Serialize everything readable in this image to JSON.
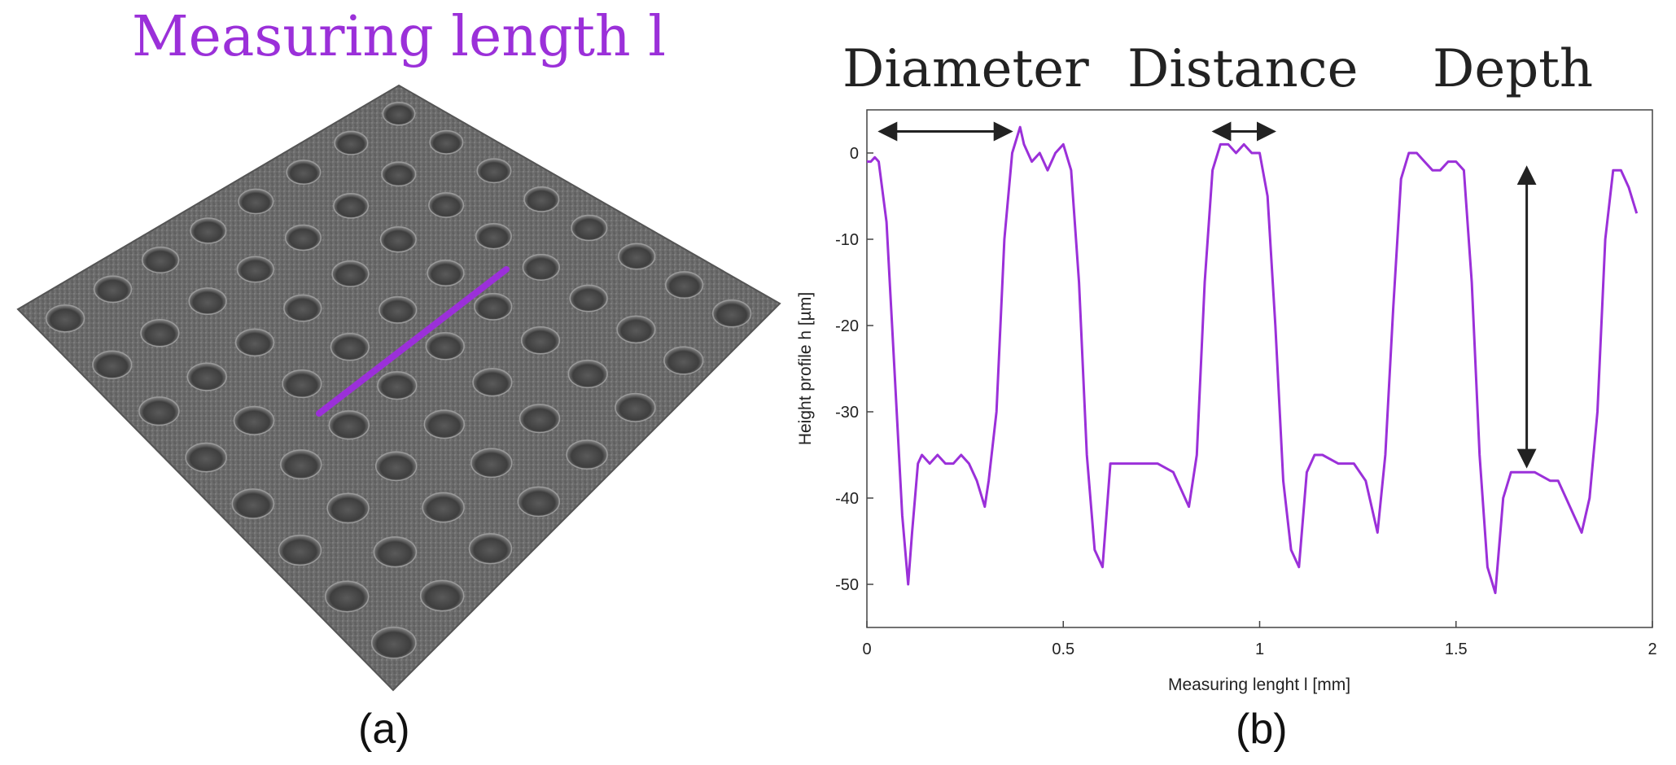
{
  "panel_a": {
    "title": "Measuring length l",
    "caption": "(a)",
    "line_color": "#9b30d9",
    "surface_color": "#6e6e6e",
    "dimple_color": "#4d4d4d"
  },
  "panel_b": {
    "caption": "(b)",
    "annotations": {
      "diameter": "Diameter",
      "distance": "Distance",
      "depth": "Depth"
    }
  },
  "chart_data": {
    "type": "line",
    "title": "",
    "xlabel": "Measuring lenght l [mm]",
    "ylabel": "Height profile h [µm]",
    "xlim": [
      0,
      2
    ],
    "ylim": [
      -55,
      5
    ],
    "xticks": [
      0,
      0.5,
      1,
      1.5,
      2
    ],
    "xtick_labels": [
      "0",
      "0.5",
      "1",
      "1.5",
      "2"
    ],
    "yticks": [
      0,
      -10,
      -20,
      -30,
      -40,
      -50
    ],
    "ytick_labels": [
      "0",
      "-10",
      "-20",
      "-30",
      "-40",
      "-50"
    ],
    "grid": false,
    "series": [
      {
        "name": "height profile",
        "color": "#9b30d9",
        "x": [
          0,
          0.01,
          0.02,
          0.03,
          0.05,
          0.07,
          0.09,
          0.105,
          0.115,
          0.13,
          0.14,
          0.16,
          0.18,
          0.2,
          0.22,
          0.24,
          0.26,
          0.28,
          0.3,
          0.31,
          0.33,
          0.35,
          0.37,
          0.39,
          0.4,
          0.42,
          0.44,
          0.46,
          0.48,
          0.5,
          0.52,
          0.54,
          0.56,
          0.58,
          0.6,
          0.62,
          0.64,
          0.66,
          0.7,
          0.74,
          0.78,
          0.8,
          0.82,
          0.84,
          0.86,
          0.88,
          0.9,
          0.92,
          0.94,
          0.96,
          0.98,
          1.0,
          1.02,
          1.04,
          1.06,
          1.08,
          1.1,
          1.12,
          1.14,
          1.16,
          1.2,
          1.24,
          1.27,
          1.3,
          1.32,
          1.34,
          1.36,
          1.38,
          1.4,
          1.42,
          1.44,
          1.46,
          1.48,
          1.5,
          1.52,
          1.54,
          1.56,
          1.58,
          1.6,
          1.62,
          1.64,
          1.66,
          1.7,
          1.74,
          1.76,
          1.78,
          1.8,
          1.82,
          1.84,
          1.86,
          1.88,
          1.9,
          1.92,
          1.94,
          1.96
        ],
        "y": [
          -1,
          -1,
          -0.5,
          -1,
          -8,
          -25,
          -42,
          -50,
          -44,
          -36,
          -35,
          -36,
          -35,
          -36,
          -36,
          -35,
          -36,
          -38,
          -41,
          -38,
          -30,
          -10,
          0,
          3,
          1,
          -1,
          0,
          -2,
          0,
          1,
          -2,
          -15,
          -35,
          -46,
          -48,
          -36,
          -36,
          -36,
          -36,
          -36,
          -37,
          -39,
          -41,
          -35,
          -15,
          -2,
          1,
          1,
          0,
          1,
          0,
          0,
          -5,
          -20,
          -38,
          -46,
          -48,
          -37,
          -35,
          -35,
          -36,
          -36,
          -38,
          -44,
          -35,
          -18,
          -3,
          0,
          0,
          -1,
          -2,
          -2,
          -1,
          -1,
          -2,
          -15,
          -35,
          -48,
          -51,
          -40,
          -37,
          -37,
          -37,
          -38,
          -38,
          -40,
          -42,
          -44,
          -40,
          -30,
          -10,
          -2,
          -2,
          -4,
          -7
        ]
      }
    ]
  }
}
